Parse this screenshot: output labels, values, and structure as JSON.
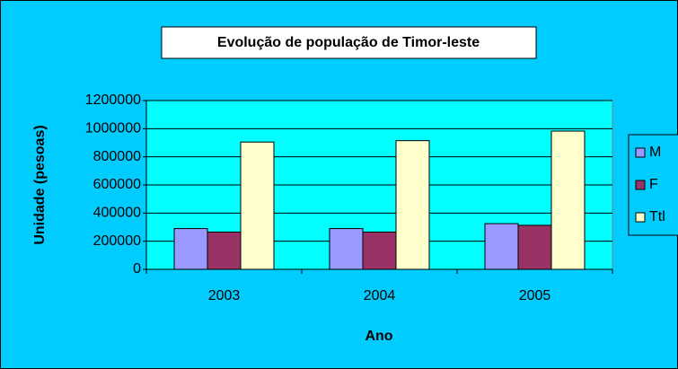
{
  "chart_data": {
    "type": "bar",
    "title": "Evolução de população de Timor-leste",
    "x_label": "Ano",
    "y_label": "Unidade (pesoas)",
    "categories": [
      "2003",
      "2004",
      "2005"
    ],
    "series": [
      {
        "name": "M",
        "color": "#9999ff",
        "values": [
          290000,
          290000,
          325000
        ]
      },
      {
        "name": "F",
        "color": "#993366",
        "values": [
          265000,
          265000,
          313000
        ]
      },
      {
        "name": "Ttl",
        "color": "#ffffcc",
        "values": [
          905000,
          915000,
          983000
        ]
      }
    ],
    "ylim": [
      0,
      1200000
    ],
    "yticks": [
      0,
      200000,
      400000,
      600000,
      800000,
      1000000,
      1200000
    ],
    "grid": true,
    "legend": "right"
  }
}
